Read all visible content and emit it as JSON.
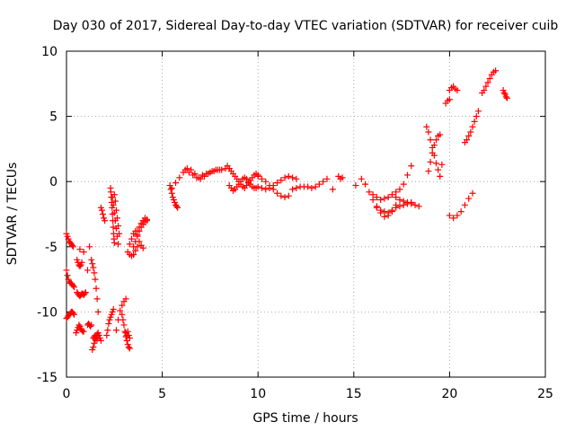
{
  "chart_data": {
    "type": "scatter",
    "title": "Day 030 of 2017, Sidereal Day-to-day VTEC variation (SDTVAR) for receiver cuib",
    "xlabel": "GPS time / hours",
    "ylabel": "SDTVAR / TECUs",
    "xlim": [
      0,
      25
    ],
    "ylim": [
      -15,
      10
    ],
    "xticks": [
      "0",
      "5",
      "10",
      "15",
      "20",
      "25"
    ],
    "yticks": [
      "-15",
      "-10",
      "-5",
      "0",
      "5",
      "10"
    ],
    "grid": true,
    "marker": "+",
    "color": "#ff0000",
    "segments": [
      {
        "x": [
          0.0,
          0.05,
          0.1,
          0.15,
          0.2,
          0.25,
          0.3,
          0.35
        ],
        "y": [
          -4.0,
          -4.2,
          -4.4,
          -4.6,
          -4.7,
          -4.8,
          -4.9,
          -5.0
        ]
      },
      {
        "x": [
          0.0,
          0.05,
          0.1,
          0.15,
          0.2,
          0.25,
          0.3,
          0.35,
          0.4
        ],
        "y": [
          -6.8,
          -7.2,
          -7.5,
          -7.7,
          -7.8,
          -7.8,
          -7.9,
          -8.0,
          -8.1
        ]
      },
      {
        "x": [
          0.0,
          0.05,
          0.1,
          0.15,
          0.2,
          0.25,
          0.3,
          0.35,
          0.4
        ],
        "y": [
          -10.5,
          -10.4,
          -10.3,
          -10.2,
          -10.1,
          -10.0,
          -10.0,
          -10.1,
          -10.2
        ]
      },
      {
        "x": [
          0.5,
          0.55,
          0.6,
          0.65,
          0.7,
          0.75,
          0.8,
          0.85,
          0.9
        ],
        "y": [
          -11.6,
          -11.4,
          -11.2,
          -11.0,
          -11.1,
          -11.3,
          -11.4,
          -11.5,
          -11.5
        ]
      },
      {
        "x": [
          0.55,
          0.6,
          0.65,
          0.7,
          0.75,
          0.8,
          0.85,
          0.9,
          0.95,
          1.0
        ],
        "y": [
          -8.5,
          -8.6,
          -8.7,
          -8.8,
          -8.7,
          -8.6,
          -8.6,
          -8.7,
          -8.6,
          -8.5
        ]
      },
      {
        "x": [
          0.55,
          0.6,
          0.65,
          0.7,
          0.75,
          0.8
        ],
        "y": [
          -6.0,
          -6.2,
          -6.4,
          -6.5,
          -6.4,
          -6.2
        ]
      },
      {
        "x": [
          0.7,
          0.9,
          1.1,
          1.2
        ],
        "y": [
          -5.2,
          -5.4,
          -6.8,
          -5.0
        ]
      },
      {
        "x": [
          1.1,
          1.15,
          1.2,
          1.25,
          1.3
        ],
        "y": [
          -11.0,
          -10.9,
          -11.0,
          -11.1,
          -11.0
        ]
      },
      {
        "x": [
          1.3,
          1.35,
          1.4,
          1.45,
          1.5,
          1.55,
          1.6,
          1.65
        ],
        "y": [
          -6.0,
          -6.3,
          -6.6,
          -7.0,
          -7.5,
          -8.2,
          -9.0,
          -10.0
        ]
      },
      {
        "x": [
          1.35,
          1.4,
          1.45,
          1.5,
          1.55,
          1.6,
          1.65,
          1.7,
          1.75,
          1.8
        ],
        "y": [
          -12.9,
          -12.7,
          -12.4,
          -12.1,
          -11.9,
          -11.7,
          -11.6,
          -11.8,
          -12.0,
          -12.2
        ]
      },
      {
        "x": [
          1.4,
          1.45,
          1.5,
          1.55,
          1.6
        ],
        "y": [
          -12.0,
          -11.9,
          -11.8,
          -12.0,
          -12.1
        ]
      },
      {
        "x": [
          1.8,
          1.85,
          1.9,
          1.95,
          2.0
        ],
        "y": [
          -2.0,
          -2.2,
          -2.5,
          -2.8,
          -3.0
        ]
      },
      {
        "x": [
          2.1,
          2.15,
          2.2,
          2.25,
          2.3,
          2.35,
          2.4,
          2.45
        ],
        "y": [
          -11.8,
          -11.4,
          -10.9,
          -10.6,
          -10.4,
          -10.2,
          -10.0,
          -9.8
        ]
      },
      {
        "x": [
          2.3,
          2.32,
          2.34,
          2.36,
          2.38,
          2.4,
          2.42,
          2.44,
          2.46,
          2.48,
          2.5
        ],
        "y": [
          -0.5,
          -0.8,
          -1.2,
          -1.6,
          -2.0,
          -2.5,
          -3.0,
          -3.5,
          -4.0,
          -4.4,
          -4.7
        ]
      },
      {
        "x": [
          2.4,
          2.45,
          2.5,
          2.55,
          2.6,
          2.65,
          2.7
        ],
        "y": [
          -1.2,
          -1.8,
          -2.4,
          -3.0,
          -3.6,
          -4.2,
          -4.8
        ]
      },
      {
        "x": [
          2.5,
          2.55,
          2.6,
          2.65,
          2.7,
          2.75
        ],
        "y": [
          -1.0,
          -1.5,
          -2.2,
          -2.8,
          -3.4,
          -4.0
        ]
      },
      {
        "x": [
          2.6,
          2.7,
          2.8,
          2.9,
          3.0,
          3.1
        ],
        "y": [
          -11.4,
          -10.6,
          -9.9,
          -9.5,
          -9.2,
          -9.0
        ]
      },
      {
        "x": [
          2.9,
          2.95,
          3.0,
          3.05,
          3.1,
          3.15,
          3.2,
          3.25,
          3.3
        ],
        "y": [
          -10.2,
          -10.6,
          -11.0,
          -11.5,
          -11.9,
          -12.2,
          -12.5,
          -12.7,
          -12.8
        ]
      },
      {
        "x": [
          3.1,
          3.15,
          3.2,
          3.25,
          3.3
        ],
        "y": [
          -11.6,
          -11.8,
          -11.5,
          -11.8,
          -12.0
        ]
      },
      {
        "x": [
          3.2,
          3.3,
          3.4,
          3.5,
          3.6,
          3.7
        ],
        "y": [
          -5.4,
          -5.6,
          -5.7,
          -5.6,
          -5.3,
          -5.0
        ]
      },
      {
        "x": [
          3.3,
          3.4,
          3.5,
          3.6,
          3.7,
          3.8,
          3.9,
          4.0
        ],
        "y": [
          -4.8,
          -4.4,
          -4.0,
          -3.8,
          -4.1,
          -4.6,
          -4.9,
          -5.1
        ]
      },
      {
        "x": [
          3.5,
          3.6,
          3.7,
          3.8,
          3.9,
          4.0,
          4.1,
          4.2
        ],
        "y": [
          -5.0,
          -4.6,
          -4.2,
          -3.8,
          -3.5,
          -3.3,
          -3.1,
          -3.0
        ]
      },
      {
        "x": [
          3.7,
          3.8,
          3.9,
          4.0,
          4.1,
          4.2
        ],
        "y": [
          -3.8,
          -3.5,
          -3.2,
          -3.0,
          -2.8,
          -2.9
        ]
      },
      {
        "x": [
          5.4,
          5.45,
          5.5,
          5.55,
          5.6,
          5.65,
          5.7,
          5.75,
          5.8
        ],
        "y": [
          -0.3,
          -0.6,
          -0.9,
          -1.2,
          -1.4,
          -1.6,
          -1.8,
          -1.9,
          -2.0
        ]
      },
      {
        "x": [
          5.5,
          5.7,
          5.9,
          6.1,
          6.3,
          6.5,
          6.7,
          6.9,
          7.1,
          7.3,
          7.5,
          7.7,
          7.9,
          8.1,
          8.3,
          8.5
        ],
        "y": [
          -0.5,
          -0.1,
          0.3,
          0.7,
          1.0,
          0.9,
          0.6,
          0.3,
          0.5,
          0.6,
          0.7,
          0.8,
          0.9,
          0.9,
          1.0,
          1.0
        ]
      },
      {
        "x": [
          6.2,
          6.4,
          6.6,
          6.8,
          7.0,
          7.2,
          7.4,
          7.6,
          7.8,
          8.0
        ],
        "y": [
          0.9,
          0.7,
          0.5,
          0.3,
          0.2,
          0.4,
          0.6,
          0.8,
          0.9,
          0.9
        ]
      },
      {
        "x": [
          8.4,
          8.5,
          8.6,
          8.7,
          8.8,
          8.9,
          9.0,
          9.1,
          9.2,
          9.3,
          9.4,
          9.5,
          9.6,
          9.7,
          9.8,
          9.9,
          10.0
        ],
        "y": [
          1.2,
          1.0,
          0.8,
          0.6,
          0.4,
          0.2,
          0.0,
          -0.2,
          -0.4,
          -0.5,
          -0.3,
          -0.1,
          0.1,
          0.3,
          0.5,
          0.6,
          0.5
        ]
      },
      {
        "x": [
          8.5,
          8.6,
          8.7,
          8.8,
          8.9,
          9.0,
          9.1,
          9.2,
          9.3,
          9.4,
          9.5,
          9.6,
          9.7,
          9.8,
          9.9
        ],
        "y": [
          -0.3,
          -0.5,
          -0.7,
          -0.6,
          -0.4,
          -0.2,
          0.0,
          0.2,
          0.3,
          0.2,
          0.0,
          -0.2,
          -0.4,
          -0.5,
          -0.5
        ]
      },
      {
        "x": [
          10.0,
          10.2,
          10.4,
          10.6,
          10.8,
          11.0,
          11.2,
          11.4,
          11.6
        ],
        "y": [
          0.4,
          0.2,
          0.0,
          -0.3,
          -0.6,
          -0.9,
          -1.1,
          -1.2,
          -1.1
        ]
      },
      {
        "x": [
          10.0,
          10.2,
          10.4,
          10.6,
          10.8,
          11.0,
          11.2,
          11.4,
          11.6,
          11.8,
          12.0
        ],
        "y": [
          -0.4,
          -0.5,
          -0.6,
          -0.5,
          -0.3,
          -0.1,
          0.1,
          0.3,
          0.4,
          0.3,
          0.2
        ]
      },
      {
        "x": [
          11.8,
          12.0,
          12.2,
          12.4,
          12.6,
          12.8
        ],
        "y": [
          -0.6,
          -0.5,
          -0.4,
          -0.4,
          -0.4,
          -0.5
        ]
      },
      {
        "x": [
          13.0,
          13.2,
          13.4,
          13.6
        ],
        "y": [
          -0.4,
          -0.2,
          0.0,
          0.2
        ]
      },
      {
        "x": [
          13.9
        ],
        "y": [
          -0.6
        ]
      },
      {
        "x": [
          14.2,
          14.3,
          14.4
        ],
        "y": [
          0.4,
          0.2,
          0.3
        ]
      },
      {
        "x": [
          15.1,
          15.4
        ],
        "y": [
          -0.3,
          0.2
        ]
      },
      {
        "x": [
          15.6,
          15.8,
          16.0,
          16.2,
          16.4,
          16.6,
          16.8,
          17.0,
          17.2,
          17.4,
          17.6,
          17.8,
          18.0
        ],
        "y": [
          -0.2,
          -0.8,
          -1.4,
          -1.9,
          -2.2,
          -2.3,
          -2.4,
          -2.2,
          -2.0,
          -1.9,
          -1.8,
          -1.7,
          -1.6
        ]
      },
      {
        "x": [
          16.0,
          16.2,
          16.4,
          16.6,
          16.8,
          17.0,
          17.2,
          17.4,
          17.6,
          17.8,
          18.0
        ],
        "y": [
          -1.0,
          -1.2,
          -1.4,
          -1.3,
          -1.2,
          -1.0,
          -0.8,
          -0.6,
          -0.2,
          0.5,
          1.2
        ]
      },
      {
        "x": [
          16.2,
          16.4,
          16.6,
          16.8,
          17.0,
          17.2
        ],
        "y": [
          -2.0,
          -2.4,
          -2.7,
          -2.6,
          -2.3,
          -1.8
        ]
      },
      {
        "x": [
          17.2,
          17.4,
          17.6,
          17.8,
          18.0,
          18.2,
          18.4
        ],
        "y": [
          -1.2,
          -1.4,
          -1.5,
          -1.6,
          -1.7,
          -1.8,
          -1.9
        ]
      },
      {
        "x": [
          18.8,
          18.9,
          19.0,
          19.1,
          19.2,
          19.3,
          19.4,
          19.5
        ],
        "y": [
          4.2,
          3.8,
          3.2,
          2.6,
          2.0,
          1.4,
          0.9,
          0.4
        ]
      },
      {
        "x": [
          18.9,
          19.0,
          19.1,
          19.2,
          19.3,
          19.4,
          19.5
        ],
        "y": [
          0.8,
          1.5,
          2.2,
          2.8,
          3.2,
          3.5,
          3.6
        ]
      },
      {
        "x": [
          19.6
        ],
        "y": [
          1.3
        ]
      },
      {
        "x": [
          19.8,
          19.9,
          20.0
        ],
        "y": [
          6.0,
          6.2,
          6.3
        ]
      },
      {
        "x": [
          20.0,
          20.1,
          20.2,
          20.3,
          20.4
        ],
        "y": [
          7.0,
          7.2,
          7.3,
          7.1,
          7.0
        ]
      },
      {
        "x": [
          20.0,
          20.2,
          20.4,
          20.6,
          20.8,
          21.0,
          21.2
        ],
        "y": [
          -2.6,
          -2.8,
          -2.6,
          -2.3,
          -1.8,
          -1.3,
          -0.9
        ]
      },
      {
        "x": [
          20.8,
          20.9,
          21.0,
          21.1,
          21.2,
          21.3,
          21.4,
          21.5
        ],
        "y": [
          3.0,
          3.2,
          3.5,
          3.8,
          4.2,
          4.6,
          5.0,
          5.4
        ]
      },
      {
        "x": [
          21.7,
          21.8,
          21.9,
          22.0,
          22.1,
          22.2,
          22.3,
          22.4
        ],
        "y": [
          6.8,
          7.0,
          7.3,
          7.6,
          7.9,
          8.2,
          8.4,
          8.5
        ]
      },
      {
        "x": [
          22.8,
          22.85,
          22.9,
          22.95,
          23.0
        ],
        "y": [
          7.0,
          6.8,
          6.7,
          6.5,
          6.4
        ]
      }
    ]
  }
}
